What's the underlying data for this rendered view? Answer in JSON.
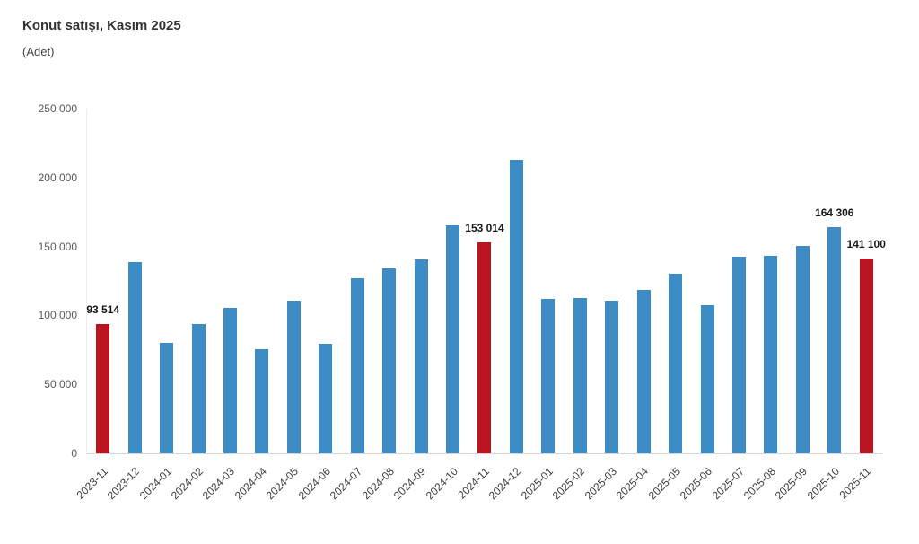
{
  "header": {
    "title": "Konut satışı, Kasım 2025",
    "subtitle": "(Adet)"
  },
  "colors": {
    "bar_blue": "#3d8cc6",
    "bar_red": "#b9141f",
    "axis_line": "#d6d6d6"
  },
  "chart_data": {
    "type": "bar",
    "title": "Konut satışı, Kasım 2025",
    "unit": "(Adet)",
    "xlabel": "",
    "ylabel": "",
    "ylim": [
      0,
      250000
    ],
    "grid": false,
    "legend": "none",
    "bar_color": "#3d8cc6",
    "highlight_color": "#b9141f",
    "highlighted_categories": [
      "2023-11",
      "2024-11",
      "2025-11"
    ],
    "categories": [
      "2023-11",
      "2023-12",
      "2024-01",
      "2024-02",
      "2024-03",
      "2024-04",
      "2024-05",
      "2024-06",
      "2024-07",
      "2024-08",
      "2024-09",
      "2024-10",
      "2024-11",
      "2024-12",
      "2025-01",
      "2025-02",
      "2025-03",
      "2025-04",
      "2025-05",
      "2025-06",
      "2025-07",
      "2025-08",
      "2025-09",
      "2025-10",
      "2025-11"
    ],
    "values": [
      93514,
      138500,
      80300,
      93900,
      105500,
      75500,
      110600,
      79300,
      127100,
      134200,
      140900,
      165100,
      153014,
      212600,
      112200,
      112800,
      110800,
      118400,
      130000,
      107700,
      142900,
      143300,
      150700,
      164306,
      141100
    ],
    "bar_labels": [
      "93 514",
      "",
      "",
      "",
      "",
      "",
      "",
      "",
      "",
      "",
      "",
      "",
      "153 014",
      "",
      "",
      "",
      "",
      "",
      "",
      "",
      "",
      "",
      "",
      "164 306",
      "141 100"
    ],
    "yticks": [
      {
        "value": 0,
        "label": "0"
      },
      {
        "value": 50000,
        "label": "50 000"
      },
      {
        "value": 100000,
        "label": "100 000"
      },
      {
        "value": 150000,
        "label": "150 000"
      },
      {
        "value": 200000,
        "label": "200 000"
      },
      {
        "value": 250000,
        "label": "250 000"
      }
    ]
  }
}
